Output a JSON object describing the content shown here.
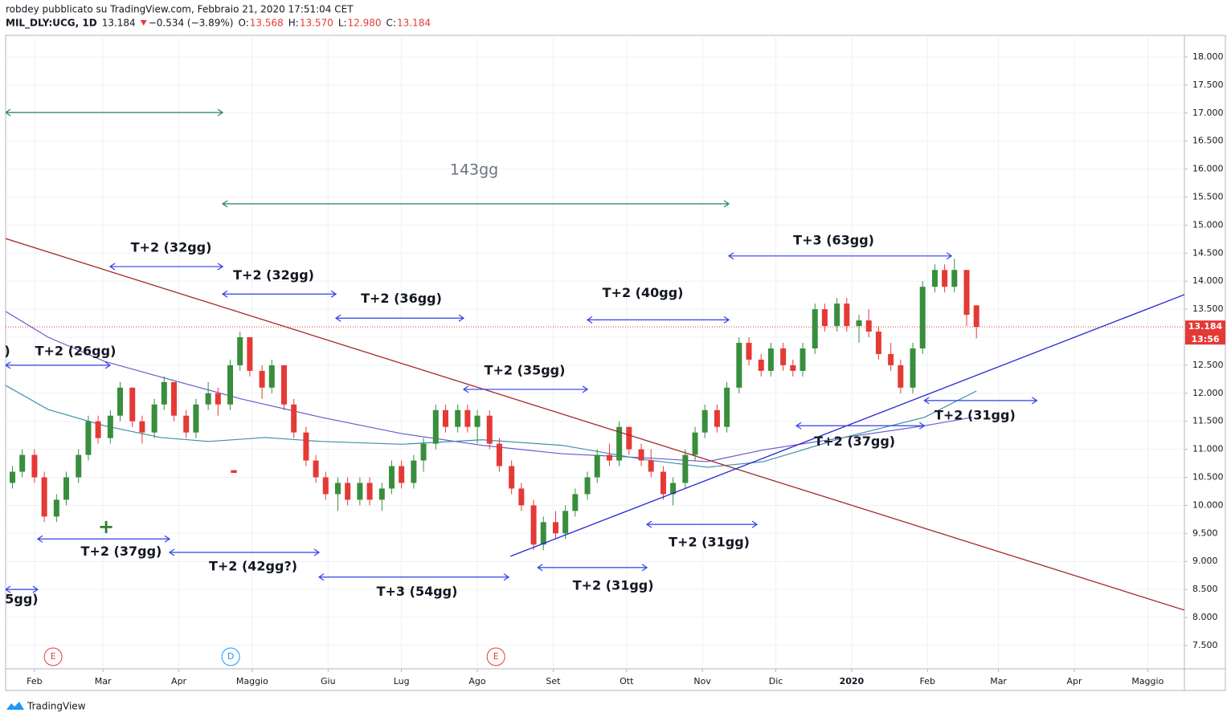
{
  "header": {
    "line1": "robdey pubblicato su TradingView.com, Febbraio 21, 2020 17:51:04 CET",
    "symbol": "MIL_DLY:UCG, 1D",
    "price": "13.184",
    "change": "−0.534 (−3.89%)",
    "o_label": "O:",
    "o": "13.568",
    "h_label": "H:",
    "h": "13.570",
    "l_label": "L:",
    "l": "12.980",
    "c_label": "C:",
    "c": "13.184"
  },
  "footer": {
    "brand": "TradingView"
  },
  "chart_data": {
    "type": "candlestick",
    "xlim": [
      19.2,
      501
    ],
    "ylim": [
      7.083,
      18.387
    ],
    "grid": true,
    "xticks": [
      {
        "value": 31,
        "label": "Feb"
      },
      {
        "value": 59,
        "label": "Mar"
      },
      {
        "value": 90,
        "label": "Apr"
      },
      {
        "value": 120,
        "label": "Maggio"
      },
      {
        "value": 151,
        "label": "Giu"
      },
      {
        "value": 181,
        "label": "Lug"
      },
      {
        "value": 212,
        "label": "Ago"
      },
      {
        "value": 243,
        "label": "Set"
      },
      {
        "value": 273,
        "label": "Ott"
      },
      {
        "value": 304,
        "label": "Nov"
      },
      {
        "value": 334,
        "label": "Dic"
      },
      {
        "value": 365,
        "label": "2020"
      },
      {
        "value": 396,
        "label": "Feb"
      },
      {
        "value": 425,
        "label": "Mar"
      },
      {
        "value": 456,
        "label": "Apr"
      },
      {
        "value": 486,
        "label": "Maggio"
      }
    ],
    "yticks": [
      {
        "value": 7.5,
        "label": "7.500"
      },
      {
        "value": 8,
        "label": "8.000"
      },
      {
        "value": 8.5,
        "label": "8.500"
      },
      {
        "value": 9,
        "label": "9.000"
      },
      {
        "value": 9.5,
        "label": "9.500"
      },
      {
        "value": 10,
        "label": "10.000"
      },
      {
        "value": 10.5,
        "label": "10.500"
      },
      {
        "value": 11,
        "label": "11.000"
      },
      {
        "value": 11.5,
        "label": "11.500"
      },
      {
        "value": 12,
        "label": "12.000"
      },
      {
        "value": 12.5,
        "label": "12.500"
      },
      {
        "value": 13,
        "label": "13.000"
      },
      {
        "value": 13.5,
        "label": "13.500"
      },
      {
        "value": 14,
        "label": "14.000"
      },
      {
        "value": 14.5,
        "label": "14.500"
      },
      {
        "value": 15,
        "label": "15.000"
      },
      {
        "value": 15.5,
        "label": "15.500"
      },
      {
        "value": 16,
        "label": "16.000"
      },
      {
        "value": 16.5,
        "label": "16.500"
      },
      {
        "value": 17,
        "label": "17.000"
      },
      {
        "value": 17.5,
        "label": "17.500"
      },
      {
        "value": 18,
        "label": "18.000"
      }
    ],
    "up_color": "#388e3c",
    "down_color": "#e53935",
    "candles": {
      "x": [
        22,
        26,
        31,
        35,
        40,
        44,
        49,
        53,
        57,
        62,
        66,
        71,
        75,
        80,
        84,
        88,
        93,
        97,
        102,
        106,
        111,
        115,
        119,
        124,
        128,
        133,
        137,
        142,
        146,
        150,
        155,
        159,
        164,
        168,
        173,
        177,
        181,
        186,
        190,
        195,
        199,
        204,
        208,
        212,
        217,
        221,
        226,
        230,
        235,
        239,
        244,
        248,
        252,
        257,
        261,
        266,
        270,
        274,
        279,
        283,
        288,
        292,
        297,
        301,
        305,
        310,
        314,
        319,
        323,
        328,
        332,
        337,
        341,
        345,
        350,
        354,
        359,
        363,
        368,
        372,
        376,
        381,
        385,
        390,
        394,
        399,
        403,
        407,
        412,
        416
      ],
      "ohlc": [
        [
          10.4,
          10.7,
          10.3,
          10.6
        ],
        [
          10.6,
          11.0,
          10.5,
          10.9
        ],
        [
          10.9,
          11.0,
          10.4,
          10.5
        ],
        [
          10.5,
          10.6,
          9.7,
          9.8
        ],
        [
          9.8,
          10.2,
          9.7,
          10.1
        ],
        [
          10.1,
          10.6,
          10.0,
          10.5
        ],
        [
          10.5,
          11.0,
          10.4,
          10.9
        ],
        [
          10.9,
          11.6,
          10.8,
          11.5
        ],
        [
          11.5,
          11.6,
          11.1,
          11.2
        ],
        [
          11.2,
          11.7,
          11.1,
          11.6
        ],
        [
          11.6,
          12.2,
          11.5,
          12.1
        ],
        [
          12.1,
          12.1,
          11.4,
          11.5
        ],
        [
          11.5,
          11.6,
          11.1,
          11.3
        ],
        [
          11.3,
          11.9,
          11.2,
          11.8
        ],
        [
          11.8,
          12.3,
          11.7,
          12.2
        ],
        [
          12.2,
          12.2,
          11.5,
          11.6
        ],
        [
          11.6,
          11.7,
          11.2,
          11.3
        ],
        [
          11.3,
          11.9,
          11.2,
          11.8
        ],
        [
          11.8,
          12.2,
          11.7,
          12.0
        ],
        [
          12.0,
          12.1,
          11.6,
          11.8
        ],
        [
          11.8,
          12.6,
          11.7,
          12.5
        ],
        [
          12.5,
          13.1,
          12.4,
          13.0
        ],
        [
          13.0,
          13.0,
          12.3,
          12.4
        ],
        [
          12.4,
          12.5,
          11.9,
          12.1
        ],
        [
          12.1,
          12.6,
          12.0,
          12.5
        ],
        [
          12.5,
          12.5,
          11.7,
          11.8
        ],
        [
          11.8,
          11.9,
          11.2,
          11.3
        ],
        [
          11.3,
          11.4,
          10.7,
          10.8
        ],
        [
          10.8,
          10.9,
          10.4,
          10.5
        ],
        [
          10.5,
          10.6,
          10.1,
          10.2
        ],
        [
          10.2,
          10.5,
          9.9,
          10.4
        ],
        [
          10.4,
          10.5,
          10.0,
          10.1
        ],
        [
          10.1,
          10.5,
          10.0,
          10.4
        ],
        [
          10.4,
          10.5,
          10.0,
          10.1
        ],
        [
          10.1,
          10.4,
          9.9,
          10.3
        ],
        [
          10.3,
          10.8,
          10.2,
          10.7
        ],
        [
          10.7,
          10.8,
          10.3,
          10.4
        ],
        [
          10.4,
          10.9,
          10.3,
          10.8
        ],
        [
          10.8,
          11.2,
          10.6,
          11.1
        ],
        [
          11.1,
          11.8,
          11.0,
          11.7
        ],
        [
          11.7,
          11.8,
          11.3,
          11.4
        ],
        [
          11.4,
          11.8,
          11.3,
          11.7
        ],
        [
          11.7,
          11.8,
          11.3,
          11.4
        ],
        [
          11.4,
          11.7,
          11.1,
          11.6
        ],
        [
          11.6,
          11.7,
          11.0,
          11.1
        ],
        [
          11.1,
          11.2,
          10.6,
          10.7
        ],
        [
          10.7,
          10.8,
          10.2,
          10.3
        ],
        [
          10.3,
          10.4,
          9.9,
          10.0
        ],
        [
          10.0,
          10.1,
          9.2,
          9.3
        ],
        [
          9.3,
          9.8,
          9.2,
          9.7
        ],
        [
          9.7,
          9.9,
          9.4,
          9.5
        ],
        [
          9.5,
          10.0,
          9.4,
          9.9
        ],
        [
          9.9,
          10.3,
          9.8,
          10.2
        ],
        [
          10.2,
          10.6,
          10.1,
          10.5
        ],
        [
          10.5,
          11.0,
          10.4,
          10.9
        ],
        [
          10.9,
          11.1,
          10.7,
          10.8
        ],
        [
          10.8,
          11.5,
          10.7,
          11.4
        ],
        [
          11.4,
          11.4,
          10.9,
          11.0
        ],
        [
          11.0,
          11.1,
          10.7,
          10.8
        ],
        [
          10.8,
          11.0,
          10.5,
          10.6
        ],
        [
          10.6,
          10.7,
          10.1,
          10.2
        ],
        [
          10.2,
          10.5,
          10.0,
          10.4
        ],
        [
          10.4,
          11.0,
          10.3,
          10.9
        ],
        [
          10.9,
          11.4,
          10.8,
          11.3
        ],
        [
          11.3,
          11.8,
          11.2,
          11.7
        ],
        [
          11.7,
          11.8,
          11.3,
          11.4
        ],
        [
          11.4,
          12.2,
          11.3,
          12.1
        ],
        [
          12.1,
          13.0,
          12.0,
          12.9
        ],
        [
          12.9,
          13.0,
          12.5,
          12.6
        ],
        [
          12.6,
          12.7,
          12.3,
          12.4
        ],
        [
          12.4,
          12.9,
          12.3,
          12.8
        ],
        [
          12.8,
          12.9,
          12.4,
          12.5
        ],
        [
          12.5,
          12.6,
          12.3,
          12.4
        ],
        [
          12.4,
          12.9,
          12.3,
          12.8
        ],
        [
          12.8,
          13.6,
          12.7,
          13.5
        ],
        [
          13.5,
          13.6,
          13.1,
          13.2
        ],
        [
          13.2,
          13.7,
          13.1,
          13.6
        ],
        [
          13.6,
          13.7,
          13.1,
          13.2
        ],
        [
          13.2,
          13.4,
          12.9,
          13.3
        ],
        [
          13.3,
          13.5,
          13.0,
          13.1
        ],
        [
          13.1,
          13.2,
          12.6,
          12.7
        ],
        [
          12.7,
          12.9,
          12.4,
          12.5
        ],
        [
          12.5,
          12.6,
          12.0,
          12.1
        ],
        [
          12.1,
          12.9,
          12.0,
          12.8
        ],
        [
          12.8,
          14.0,
          12.7,
          13.9
        ],
        [
          13.9,
          14.3,
          13.8,
          14.2
        ],
        [
          14.2,
          14.3,
          13.8,
          13.9
        ],
        [
          13.9,
          14.4,
          13.8,
          14.2
        ],
        [
          14.2,
          14.2,
          13.2,
          13.4
        ],
        [
          13.568,
          13.57,
          12.98,
          13.184
        ]
      ]
    },
    "series": [
      {
        "color": "#6a5acd",
        "x": [
          19.2,
          36.6,
          59.6,
          82.6,
          115.4,
          148.3,
          181.1,
          214.0,
          246.8,
          279.7,
          306.0,
          329.0,
          361.8,
          394.7,
          414.4
        ],
        "values": [
          13.46,
          13.0,
          12.57,
          12.29,
          11.9,
          11.57,
          11.28,
          11.07,
          10.92,
          10.85,
          10.78,
          10.99,
          11.21,
          11.42,
          11.57
        ]
      },
      {
        "color": "#3c8fa8",
        "x": [
          19.2,
          36.6,
          59.6,
          82.6,
          102.3,
          125.3,
          148.3,
          181.1,
          214.0,
          246.8,
          279.7,
          306.0,
          329.0,
          361.8,
          394.7,
          416.0
        ],
        "values": [
          12.14,
          11.71,
          11.42,
          11.21,
          11.14,
          11.21,
          11.14,
          11.09,
          11.17,
          11.07,
          10.82,
          10.68,
          10.78,
          11.21,
          11.57,
          12.04
        ]
      }
    ],
    "trendlines": [
      {
        "color": "#a52a2a",
        "x": [
          19.2,
          501
        ],
        "y": [
          14.76,
          8.13
        ]
      },
      {
        "color": "#2323d8",
        "x": [
          225.5,
          501
        ],
        "y": [
          9.09,
          13.76
        ]
      }
    ],
    "arrows": [
      {
        "x": [
          19.2,
          107.9
        ],
        "y": 17.01,
        "color": "#26806b"
      },
      {
        "x": [
          107.9,
          314.8
        ],
        "y": 15.38,
        "color": "#26806b",
        "label": "143gg"
      },
      {
        "x": [
          61.9,
          107.9
        ],
        "y": 14.26,
        "color": "#2f3ee6",
        "label": "T+2 (32gg)"
      },
      {
        "x": [
          107.9,
          154.2
        ],
        "y": 13.77,
        "color": "#2f3ee6",
        "label": "T+2 (32gg)"
      },
      {
        "x": [
          154.2,
          206.4
        ],
        "y": 13.34,
        "color": "#2f3ee6",
        "label": "T+2 (36gg)"
      },
      {
        "x": [
          19.2,
          61.9
        ],
        "y": 12.5,
        "color": "#2f3ee6",
        "label": "T+2 (26gg)"
      },
      {
        "x": [
          206.4,
          257
        ],
        "y": 12.07,
        "color": "#2f3ee6",
        "label": "T+2 (35gg)"
      },
      {
        "x": [
          257,
          314.8
        ],
        "y": 13.31,
        "color": "#2f3ee6",
        "label": "T+2 (40gg)"
      },
      {
        "x": [
          314.8,
          405.8
        ],
        "y": 14.45,
        "color": "#2f3ee6",
        "label": "T+3 (63gg)"
      },
      {
        "x": [
          394.7,
          440.7
        ],
        "y": 11.87,
        "color": "#2f3ee6",
        "label": "T+2 (31gg)"
      },
      {
        "x": [
          342.4,
          394.7
        ],
        "y": 11.42,
        "color": "#2f3ee6",
        "label": "T+2 (37gg)"
      },
      {
        "x": [
          281.3,
          326.3
        ],
        "y": 9.66,
        "color": "#2f3ee6",
        "label": "T+2 (31gg)"
      },
      {
        "x": [
          236.7,
          281.3
        ],
        "y": 8.89,
        "color": "#2f3ee6",
        "label": "T+2 (31gg)"
      },
      {
        "x": [
          147.3,
          224.8
        ],
        "y": 8.72,
        "color": "#2f3ee6",
        "label": "T+3 (54gg)"
      },
      {
        "x": [
          86.2,
          147.3
        ],
        "y": 9.16,
        "color": "#2f3ee6",
        "label": "T+2 (42gg?)"
      },
      {
        "x": [
          32.3,
          86.2
        ],
        "y": 9.4,
        "color": "#2f3ee6",
        "label": "T+2 (37gg)"
      },
      {
        "x": [
          19.2,
          32.3
        ],
        "y": 8.5,
        "color": "#2f3ee6",
        "label": "5gg)"
      }
    ],
    "texts": [
      {
        "text": ")",
        "color": "#131722"
      },
      {
        "text": "+",
        "color": "#2e7d32"
      },
      {
        "text": "-",
        "color": "#e53935"
      }
    ],
    "events": [
      {
        "x": 38.6,
        "label": "E",
        "color": "#e53935"
      },
      {
        "x": 111.2,
        "label": "D",
        "color": "#2196f3"
      },
      {
        "x": 219.6,
        "label": "E",
        "color": "#e53935"
      }
    ],
    "last_price": {
      "value": 13.184,
      "label": "13.184",
      "countdown": "13:56",
      "color": "#e53935"
    }
  }
}
